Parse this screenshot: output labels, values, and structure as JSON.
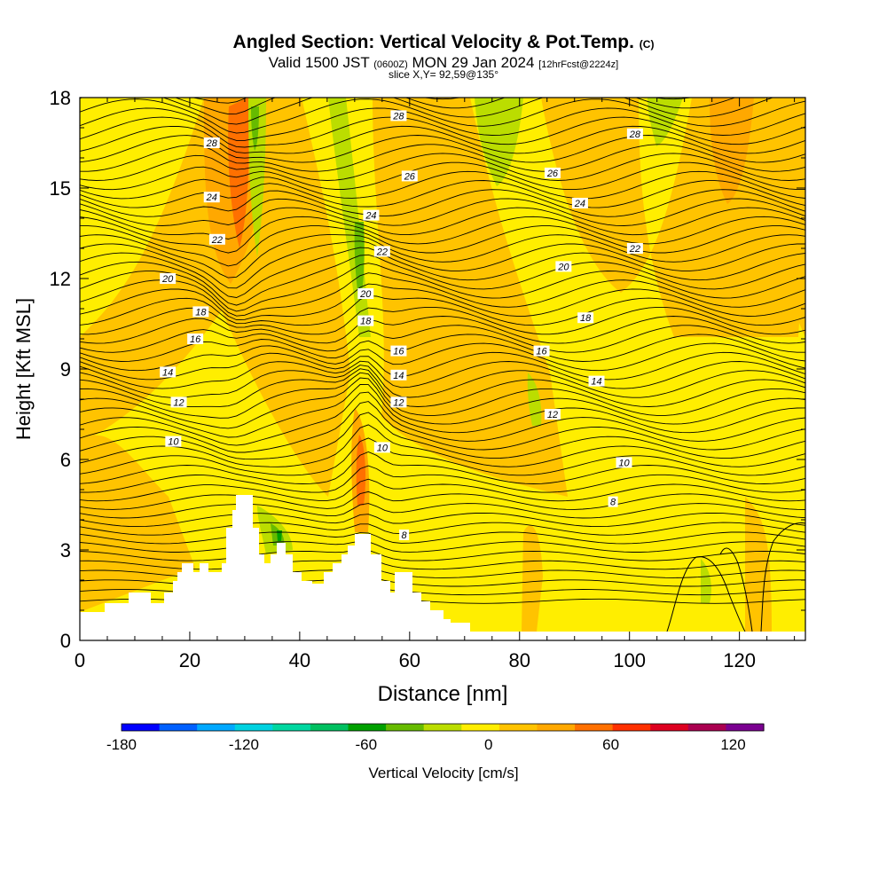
{
  "titles": {
    "main": "Angled Section: Vertical Velocity & Pot.Temp.",
    "main_unit": "(C)",
    "valid_prefix": "Valid 1500 JST",
    "valid_utc": "(0600Z)",
    "valid_date": "MON 29 Jan 2024",
    "forecast": "[12hrFcst@2224z]",
    "slice": "slice X,Y= 92,59@135°"
  },
  "chart_data": {
    "type": "heatmap",
    "xlabel": "Distance [nm]",
    "ylabel": "Height [Kft MSL]",
    "xlim": [
      0,
      132
    ],
    "ylim": [
      0,
      18
    ],
    "x_ticks": [
      "0",
      "20",
      "40",
      "60",
      "80",
      "100",
      "120"
    ],
    "y_ticks": [
      "0",
      "3",
      "6",
      "9",
      "12",
      "15",
      "18"
    ],
    "contour_labels": [
      {
        "x": 24,
        "y": 16.5,
        "label": "28"
      },
      {
        "x": 58,
        "y": 17.4,
        "label": "28"
      },
      {
        "x": 101,
        "y": 16.8,
        "label": "28"
      },
      {
        "x": 60,
        "y": 15.4,
        "label": "26"
      },
      {
        "x": 86,
        "y": 15.5,
        "label": "26"
      },
      {
        "x": 24,
        "y": 14.7,
        "label": "24"
      },
      {
        "x": 53,
        "y": 14.1,
        "label": "24"
      },
      {
        "x": 91,
        "y": 14.5,
        "label": "24"
      },
      {
        "x": 25,
        "y": 13.3,
        "label": "22"
      },
      {
        "x": 55,
        "y": 12.9,
        "label": "22"
      },
      {
        "x": 101,
        "y": 13.0,
        "label": "22"
      },
      {
        "x": 16,
        "y": 12.0,
        "label": "20"
      },
      {
        "x": 52,
        "y": 11.5,
        "label": "20"
      },
      {
        "x": 88,
        "y": 12.4,
        "label": "20"
      },
      {
        "x": 22,
        "y": 10.9,
        "label": "18"
      },
      {
        "x": 52,
        "y": 10.6,
        "label": "18"
      },
      {
        "x": 92,
        "y": 10.7,
        "label": "18"
      },
      {
        "x": 21,
        "y": 10.0,
        "label": "16"
      },
      {
        "x": 58,
        "y": 9.6,
        "label": "16"
      },
      {
        "x": 84,
        "y": 9.6,
        "label": "16"
      },
      {
        "x": 16,
        "y": 8.9,
        "label": "14"
      },
      {
        "x": 58,
        "y": 8.8,
        "label": "14"
      },
      {
        "x": 94,
        "y": 8.6,
        "label": "14"
      },
      {
        "x": 18,
        "y": 7.9,
        "label": "12"
      },
      {
        "x": 58,
        "y": 7.9,
        "label": "12"
      },
      {
        "x": 86,
        "y": 7.5,
        "label": "12"
      },
      {
        "x": 17,
        "y": 6.6,
        "label": "10"
      },
      {
        "x": 55,
        "y": 6.4,
        "label": "10"
      },
      {
        "x": 99,
        "y": 5.9,
        "label": "10"
      },
      {
        "x": 59,
        "y": 3.5,
        "label": "8"
      },
      {
        "x": 97,
        "y": 4.6,
        "label": "8"
      }
    ],
    "colorbar": {
      "label": "Vertical Velocity [cm/s]",
      "range": [
        -180,
        135
      ],
      "ticks": [
        "-180",
        "-120",
        "-60",
        "0",
        "60",
        "120"
      ],
      "colors": [
        "#0000ff",
        "#0060ff",
        "#00a8ff",
        "#00d2e0",
        "#00d7a0",
        "#00c060",
        "#00a000",
        "#66bb00",
        "#bbdd00",
        "#ffee00",
        "#ffc300",
        "#ffa800",
        "#ff7000",
        "#ff3000",
        "#dd0020",
        "#aa0050",
        "#7a0090"
      ]
    }
  }
}
